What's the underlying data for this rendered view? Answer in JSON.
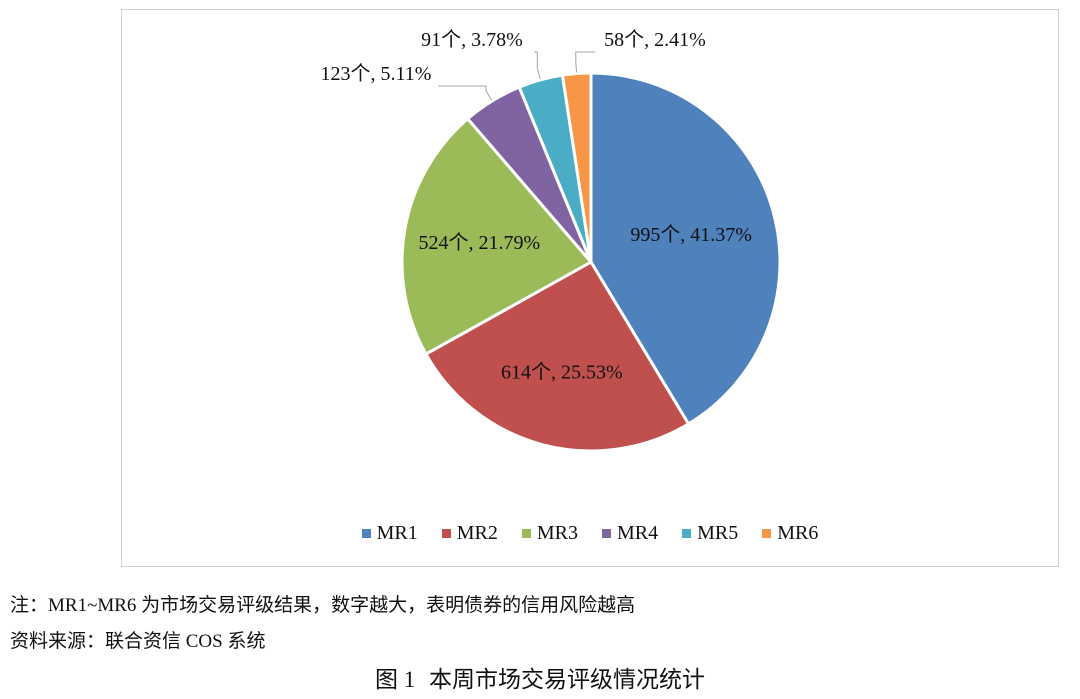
{
  "chart_data": {
    "type": "pie",
    "title": "",
    "slices": [
      {
        "name": "MR1",
        "count": 995,
        "percent": 41.37,
        "label": "995个, 41.37%",
        "color": "#4F81BD"
      },
      {
        "name": "MR2",
        "count": 614,
        "percent": 25.53,
        "label": "614个, 25.53%",
        "color": "#C0504D"
      },
      {
        "name": "MR3",
        "count": 524,
        "percent": 21.79,
        "label": "524个, 21.79%",
        "color": "#9BBB59"
      },
      {
        "name": "MR4",
        "count": 123,
        "percent": 5.11,
        "label": "123个, 5.11%",
        "color": "#8064A2"
      },
      {
        "name": "MR5",
        "count": 91,
        "percent": 3.78,
        "label": "91个, 3.78%",
        "color": "#4BACC6"
      },
      {
        "name": "MR6",
        "count": 58,
        "percent": 2.41,
        "label": "58个, 2.41%",
        "color": "#F79646"
      }
    ],
    "legend": {
      "position": "bottom",
      "items": [
        "MR1",
        "MR2",
        "MR3",
        "MR4",
        "MR5",
        "MR6"
      ]
    }
  },
  "notes": {
    "line1": "注：MR1~MR6 为市场交易评级结果，数字越大，表明债券的信用风险越高",
    "line2": "资料来源：联合资信 COS 系统"
  },
  "caption": {
    "number": "图 1",
    "text": "本周市场交易评级情况统计"
  }
}
